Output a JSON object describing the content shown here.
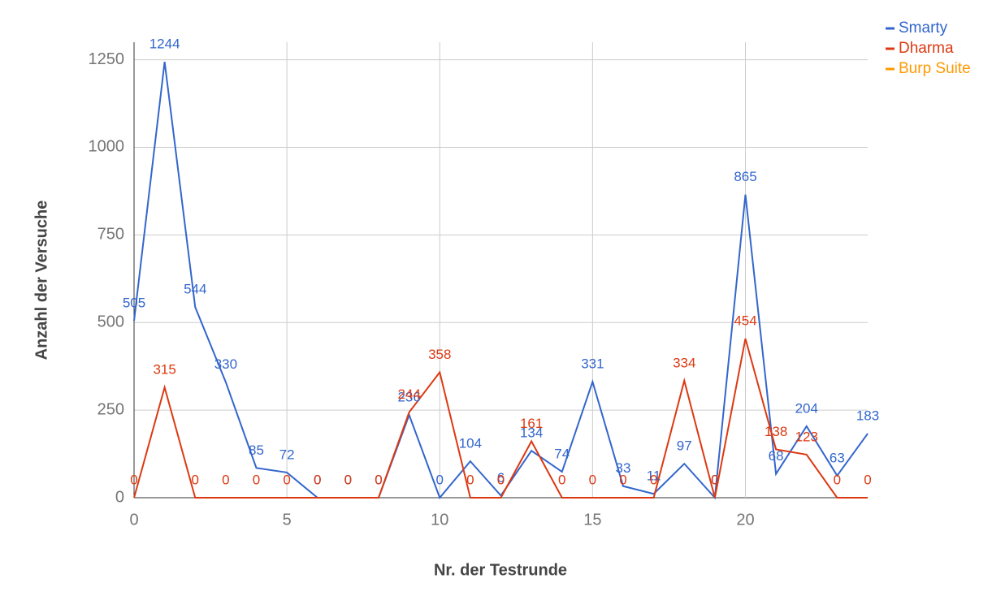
{
  "chart_data": {
    "type": "line",
    "x_label": "Nr. der Testrunde",
    "y_label": "Anzahl der Versuche",
    "x": [
      0,
      1,
      2,
      3,
      4,
      5,
      6,
      7,
      8,
      9,
      10,
      11,
      12,
      13,
      14,
      15,
      16,
      17,
      18,
      19,
      20,
      21,
      22,
      23,
      24
    ],
    "series": [
      {
        "name": "Smarty",
        "color": "#3366cc",
        "values": [
          505,
          1244,
          544,
          330,
          85,
          72,
          0,
          0,
          0,
          236,
          0,
          104,
          6,
          134,
          74,
          331,
          33,
          11,
          97,
          0,
          865,
          68,
          204,
          63,
          183
        ]
      },
      {
        "name": "Dharma",
        "color": "#dc3912",
        "values": [
          0,
          315,
          0,
          0,
          0,
          0,
          0,
          0,
          0,
          244,
          358,
          0,
          0,
          161,
          0,
          0,
          0,
          0,
          334,
          0,
          454,
          138,
          123,
          0,
          0
        ]
      },
      {
        "name": "Burp Suite",
        "color": "#ff9900",
        "values": [
          null,
          null,
          null,
          null,
          null,
          null,
          null,
          null,
          null,
          null,
          null,
          null,
          null,
          null,
          null,
          null,
          null,
          null,
          null,
          null,
          null,
          null,
          null,
          null,
          null
        ]
      }
    ],
    "xlim": [
      0,
      24
    ],
    "xticks": [
      0,
      5,
      10,
      15,
      20
    ],
    "ylim": [
      0,
      1300
    ],
    "yticks": [
      0,
      250,
      500,
      750,
      1000,
      1250
    ],
    "grid": true,
    "legend": "top-right"
  }
}
